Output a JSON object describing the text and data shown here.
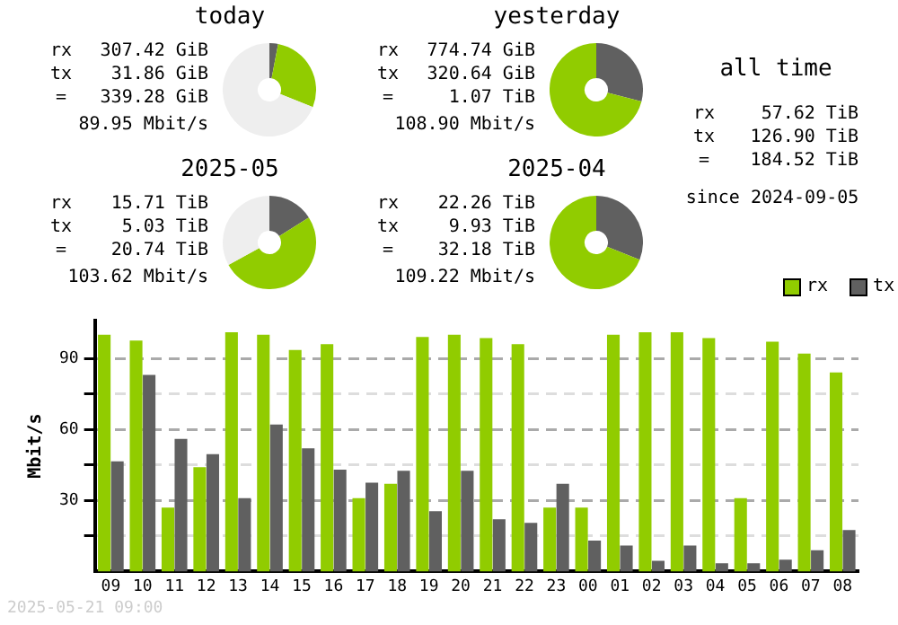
{
  "chart_data": [
    {
      "type": "donut",
      "title": "today",
      "categories": [
        null,
        null,
        null
      ],
      "values": [
        3,
        28,
        69
      ],
      "colors": [
        "#606060",
        "#91cc00",
        "#eeeeee"
      ],
      "annotations": [
        "rx 307.42 GiB",
        "tx 31.86 GiB",
        "= 339.28 GiB",
        "89.95 Mbit/s"
      ]
    },
    {
      "type": "donut",
      "title": "yesterday",
      "categories": [
        null,
        null
      ],
      "values": [
        29,
        71
      ],
      "colors": [
        "#606060",
        "#91cc00"
      ],
      "annotations": [
        "rx 774.74 GiB",
        "tx 320.64 GiB",
        "= 1.07 TiB",
        "108.90 Mbit/s"
      ]
    },
    {
      "type": "donut",
      "title": "2025-05",
      "categories": [
        null,
        null,
        null
      ],
      "values": [
        16,
        51,
        33
      ],
      "colors": [
        "#606060",
        "#91cc00",
        "#eeeeee"
      ],
      "annotations": [
        "rx 15.71 TiB",
        "tx 5.03 TiB",
        "= 20.74 TiB",
        "103.62 Mbit/s"
      ]
    },
    {
      "type": "donut",
      "title": "2025-04",
      "categories": [
        null,
        null
      ],
      "values": [
        31,
        69
      ],
      "colors": [
        "#606060",
        "#91cc00"
      ],
      "annotations": [
        "rx 22.26 TiB",
        "tx 9.93 TiB",
        "= 32.18 TiB",
        "109.22 Mbit/s"
      ]
    },
    {
      "type": "other",
      "title": "all time",
      "annotations": [
        "rx 57.62 TiB",
        "tx 126.90 TiB",
        "= 184.52 TiB",
        "since 2024-09-05"
      ]
    },
    {
      "type": "bar",
      "ylabel": "Mbit/s",
      "categories": [
        "09",
        "10",
        "11",
        "12",
        "13",
        "14",
        "15",
        "16",
        "17",
        "18",
        "19",
        "20",
        "21",
        "22",
        "23",
        "00",
        "01",
        "02",
        "03",
        "04",
        "05",
        "06",
        "07",
        "08"
      ],
      "series": [
        {
          "name": "rx",
          "color": "#91cc00",
          "values": [
            100,
            97.5,
            27,
            44,
            101,
            100,
            93.5,
            96,
            31,
            37,
            99,
            100,
            98.5,
            96,
            27,
            27,
            100,
            101,
            101,
            98.5,
            31,
            97,
            92,
            84
          ]
        },
        {
          "name": "tx",
          "color": "#606060",
          "values": [
            46.5,
            83,
            56,
            49.5,
            31,
            62,
            52,
            43,
            37.5,
            42.5,
            25.5,
            42.5,
            22,
            20.5,
            37,
            13,
            11,
            4.5,
            11,
            3.5,
            3.5,
            5,
            9,
            17.5
          ]
        }
      ],
      "ylim": [
        0,
        106
      ],
      "yticks": [
        {
          "value": 15,
          "label": null
        },
        30,
        {
          "value": 45,
          "label": null
        },
        60,
        {
          "value": 75,
          "label": null
        },
        90
      ],
      "grid": "y",
      "legend": "top right",
      "annotations": [
        "2025-05-21 09:00"
      ]
    }
  ]
}
